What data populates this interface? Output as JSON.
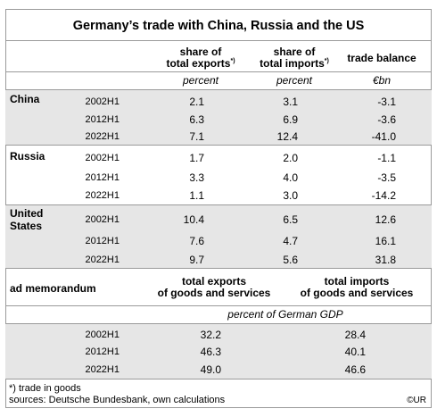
{
  "title": "Germany’s trade with China, Russia and the US",
  "headers": {
    "exports": "share of\ntotal exports",
    "exports_note": "*)",
    "imports": "share of\ntotal imports",
    "imports_note": "*)",
    "balance": "trade balance"
  },
  "units": {
    "exports": "percent",
    "imports": "percent",
    "balance": "€bn"
  },
  "countries": [
    {
      "name": "China",
      "rows": [
        {
          "period": "2002H1",
          "exports": "2.1",
          "imports": "3.1",
          "balance": "-3.1"
        },
        {
          "period": "2012H1",
          "exports": "6.3",
          "imports": "6.9",
          "balance": "-3.6"
        },
        {
          "period": "2022H1",
          "exports": "7.1",
          "imports": "12.4",
          "balance": "-41.0"
        }
      ]
    },
    {
      "name": "Russia",
      "rows": [
        {
          "period": "2002H1",
          "exports": "1.7",
          "imports": "2.0",
          "balance": "-1.1"
        },
        {
          "period": "2012H1",
          "exports": "3.3",
          "imports": "4.0",
          "balance": "-3.5"
        },
        {
          "period": "2022H1",
          "exports": "1.1",
          "imports": "3.0",
          "balance": "-14.2"
        }
      ]
    },
    {
      "name": "United\nStates",
      "rows": [
        {
          "period": "2002H1",
          "exports": "10.4",
          "imports": "6.5",
          "balance": "12.6"
        },
        {
          "period": "2012H1",
          "exports": "7.6",
          "imports": "4.7",
          "balance": "16.1"
        },
        {
          "period": "2022H1",
          "exports": "9.7",
          "imports": "5.6",
          "balance": "31.8"
        }
      ]
    }
  ],
  "memo": {
    "label": "ad memorandum",
    "exports_header": "total exports\nof goods and services",
    "imports_header": "total imports\nof goods and services",
    "unit": "percent of German GDP",
    "rows": [
      {
        "period": "2002H1",
        "exports": "32.2",
        "imports": "28.4"
      },
      {
        "period": "2012H1",
        "exports": "46.3",
        "imports": "40.1"
      },
      {
        "period": "2022H1",
        "exports": "49.0",
        "imports": "46.6"
      }
    ]
  },
  "footnote": "*) trade in goods",
  "sources": "sources: Deutsche Bundesbank, own calculations",
  "credit": "©UR",
  "colors": {
    "band": "#e6e6e6",
    "rule": "#9a9a9a"
  }
}
